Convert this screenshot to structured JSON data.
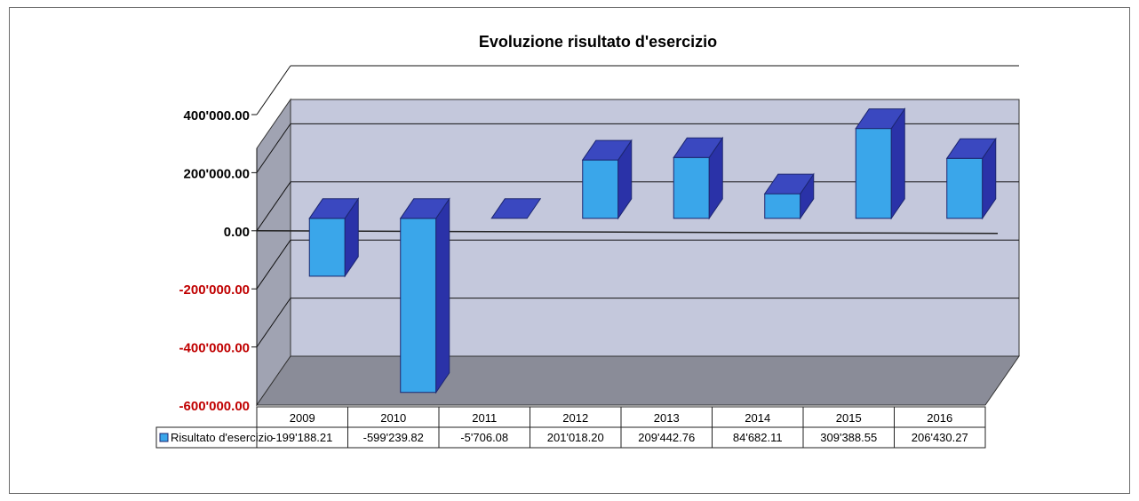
{
  "chart_data": {
    "type": "bar",
    "title": "Evoluzione risultato d'esercizio",
    "categories": [
      "2009",
      "2010",
      "2011",
      "2012",
      "2013",
      "2014",
      "2015",
      "2016"
    ],
    "series": [
      {
        "name": "Risultato d'esercizio",
        "values": [
          -199188.21,
          -599239.82,
          -5706.08,
          201018.2,
          209442.76,
          84682.11,
          309388.55,
          206430.27
        ],
        "labels": [
          "-199'188.21",
          "-599'239.82",
          "-5'706.08",
          "201'018.20",
          "209'442.76",
          "84'682.11",
          "309'388.55",
          "206'430.27"
        ]
      }
    ],
    "yticks": [
      {
        "value": 400000,
        "label": "400'000.00"
      },
      {
        "value": 200000,
        "label": "200'000.00"
      },
      {
        "value": 0,
        "label": "0.00"
      },
      {
        "value": -200000,
        "label": "-200'000.00"
      },
      {
        "value": -400000,
        "label": "-400'000.00"
      },
      {
        "value": -600000,
        "label": "-600'000.00"
      }
    ],
    "ylim": [
      -600000,
      400000
    ],
    "grid": true,
    "legend": "data-table-left",
    "colors": {
      "bar_front": "#3aa6ea",
      "bar_top": "#3a48c0",
      "bar_side": "#2a32a8",
      "back_wall": "#c4c8dc",
      "floor": "#8a8c98",
      "side_wall": "#a0a3b2",
      "negative_label": "#c00000",
      "positive_label": "#000000"
    }
  }
}
